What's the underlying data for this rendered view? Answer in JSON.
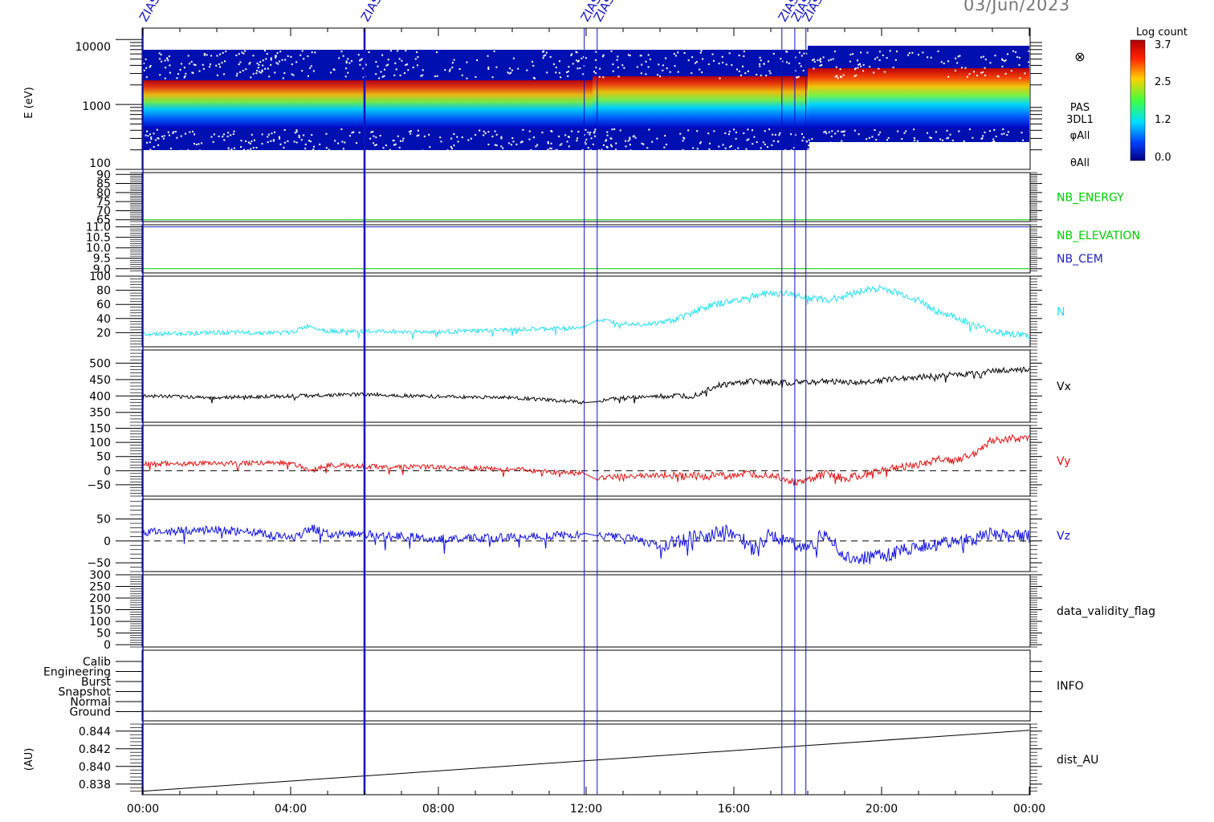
{
  "header": {
    "date": "03/Jun/2023",
    "event_labels": [
      "ZIAS",
      "ZIAS",
      "ZIAS",
      "ZIAS",
      "ZIAS",
      "ZIAS",
      "ZIAS"
    ]
  },
  "colorbar": {
    "title": "Log count",
    "ticks": [
      "3.7",
      "2.5",
      "1.2",
      "0.0"
    ],
    "range": [
      0.0,
      3.7
    ]
  },
  "chart_data": [
    {
      "type": "heatmap",
      "name": "PAS 3DL1 energy spectrogram",
      "ylabel": "E (eV)",
      "yscale": "log",
      "ylim": [
        100,
        15000
      ],
      "yticks": [
        "10000",
        "1000",
        "100"
      ],
      "side_labels": [
        "PAS",
        "3DL1",
        "φAll",
        "θAll"
      ],
      "symbol": "⊗",
      "peak_energy_eV": [
        [
          0,
          850
        ],
        [
          4,
          900
        ],
        [
          8,
          850
        ],
        [
          12,
          900
        ],
        [
          16,
          1100
        ],
        [
          20,
          1200
        ],
        [
          24,
          1400
        ]
      ]
    },
    {
      "type": "line",
      "name": "NB_ENERGY",
      "ylim": [
        64,
        91
      ],
      "yticks": [
        "90",
        "85",
        "80",
        "75",
        "70",
        "65"
      ],
      "series": [
        {
          "name": "NB_ENERGY",
          "color": "#00cc00",
          "x": [
            0,
            24
          ],
          "y": [
            65,
            65
          ]
        }
      ]
    },
    {
      "type": "line",
      "name": "NB_ELEVATION / NB_CEM",
      "ylim": [
        8.8,
        11.1
      ],
      "yticks": [
        "11.0",
        "10.5",
        "10.0",
        "9.5",
        "9.0"
      ],
      "series": [
        {
          "name": "NB_ELEVATION",
          "color": "#00cc00",
          "x": [
            0,
            24
          ],
          "y": [
            9.0,
            9.0
          ]
        },
        {
          "name": "NB_CEM",
          "color": "#2020c0",
          "x": [
            0,
            24
          ],
          "y": [
            11.0,
            11.0
          ]
        }
      ]
    },
    {
      "type": "line",
      "name": "N",
      "ylim": [
        0,
        100
      ],
      "yticks": [
        "100",
        "80",
        "60",
        "40",
        "20"
      ],
      "series": [
        {
          "name": "N",
          "color": "#22e0f0",
          "x": [
            0,
            2,
            4,
            4.5,
            5,
            6,
            8,
            10,
            11.9,
            12.3,
            13,
            13.5,
            14,
            14.5,
            15,
            15.5,
            16,
            16.5,
            17,
            17.5,
            18,
            18.5,
            19,
            19.5,
            20,
            20.5,
            21,
            21.5,
            22,
            22.5,
            23,
            24
          ],
          "y": [
            18,
            20,
            20,
            30,
            22,
            22,
            21,
            24,
            27,
            38,
            34,
            32,
            34,
            40,
            52,
            60,
            65,
            72,
            76,
            75,
            70,
            66,
            72,
            80,
            83,
            75,
            66,
            50,
            42,
            30,
            22,
            15
          ]
        }
      ]
    },
    {
      "type": "line",
      "name": "Vx",
      "ylim": [
        320,
        540
      ],
      "yticks": [
        "500",
        "450",
        "400",
        "350"
      ],
      "series": [
        {
          "name": "Vx",
          "color": "#000000",
          "x": [
            0,
            2,
            4,
            6,
            8,
            10,
            12,
            13,
            14,
            14.9,
            15.5,
            16.5,
            17.5,
            18.5,
            19.5,
            20.5,
            21.5,
            22.5,
            23.5,
            24
          ],
          "y": [
            400,
            395,
            400,
            405,
            398,
            395,
            380,
            395,
            398,
            400,
            430,
            445,
            440,
            445,
            440,
            455,
            460,
            470,
            480,
            480
          ]
        }
      ]
    },
    {
      "type": "line",
      "name": "Vy",
      "ylim": [
        -90,
        160
      ],
      "yticks": [
        "150",
        "100",
        "50",
        "0",
        "−50"
      ],
      "reference_line": 0,
      "series": [
        {
          "name": "Vy",
          "color": "#e01010",
          "x": [
            0,
            2,
            4,
            4.6,
            5,
            6,
            8,
            10,
            11,
            12,
            12.3,
            13,
            14,
            15,
            16,
            17,
            17.8,
            18.5,
            19,
            20,
            21,
            21.5,
            22,
            22.5,
            23,
            24
          ],
          "y": [
            25,
            25,
            28,
            0,
            20,
            15,
            12,
            5,
            -5,
            -10,
            -25,
            -20,
            -15,
            -20,
            -15,
            -15,
            -45,
            -10,
            -30,
            0,
            20,
            40,
            35,
            60,
            110,
            115
          ]
        }
      ]
    },
    {
      "type": "line",
      "name": "Vz",
      "ylim": [
        -70,
        95
      ],
      "yticks": [
        "50",
        "0",
        "−50"
      ],
      "reference_line": 0,
      "series": [
        {
          "name": "Vz",
          "color": "#1010e0",
          "x": [
            0,
            2,
            3,
            4,
            4.6,
            5,
            6,
            8,
            10,
            12,
            13,
            14,
            15,
            16,
            16.5,
            17,
            17.5,
            18,
            18.5,
            19,
            19.5,
            20,
            21,
            22,
            23,
            24
          ],
          "y": [
            20,
            25,
            20,
            5,
            30,
            15,
            15,
            5,
            8,
            15,
            10,
            -10,
            10,
            25,
            -20,
            15,
            -5,
            -15,
            20,
            -40,
            -40,
            -35,
            -10,
            -5,
            15,
            10
          ]
        }
      ]
    },
    {
      "type": "line",
      "name": "data_validity_flag",
      "ylim": [
        -10,
        300
      ],
      "yticks": [
        "300",
        "250",
        "200",
        "150",
        "100",
        "50",
        "0"
      ],
      "series": []
    },
    {
      "type": "table",
      "name": "INFO",
      "categories": [
        "Calib",
        "Engineering",
        "Burst",
        "Snapshot",
        "Normal",
        "Ground"
      ]
    },
    {
      "type": "line",
      "name": "dist_AU",
      "ylabel": "(AU)",
      "ylim": [
        0.8368,
        0.8448
      ],
      "yticks": [
        "0.844",
        "0.842",
        "0.840",
        "0.838"
      ],
      "series": [
        {
          "name": "dist_AU",
          "color": "#000000",
          "x": [
            0,
            24
          ],
          "y": [
            0.8372,
            0.8441
          ]
        }
      ]
    }
  ],
  "x_axis": {
    "range_hours": [
      0,
      24
    ],
    "tick_labels": [
      "00:00",
      "04:00",
      "08:00",
      "12:00",
      "16:00",
      "20:00",
      "00:00"
    ],
    "tick_hours": [
      0,
      4,
      8,
      12,
      16,
      20,
      24
    ]
  },
  "event_lines_hours": [
    6.0,
    11.95,
    12.3,
    17.3,
    17.65,
    17.95
  ],
  "colors": {
    "event_line": "#1010c0",
    "axis": "#000000"
  }
}
